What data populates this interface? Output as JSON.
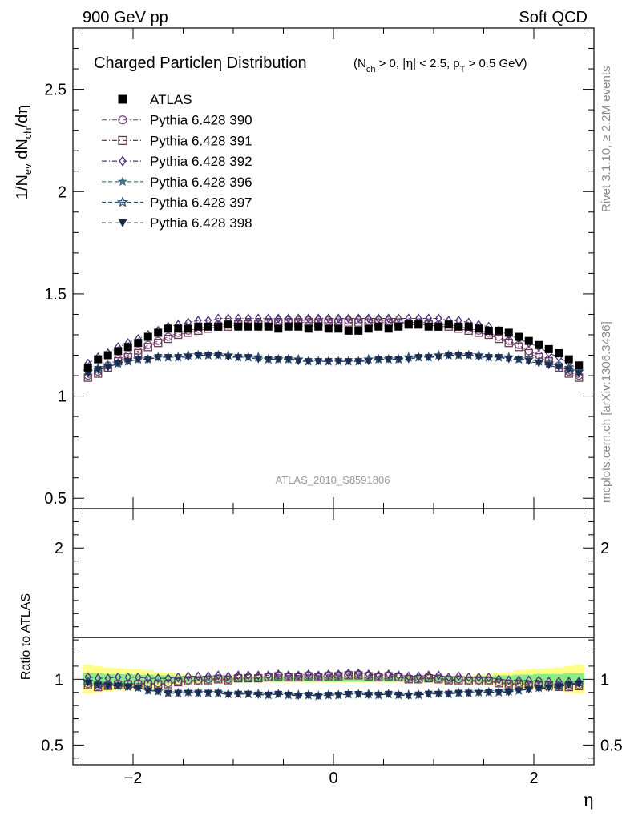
{
  "header": {
    "left": "900 GeV pp",
    "right": "Soft QCD"
  },
  "side_text": {
    "top": "Rivet 3.1.10, ≥ 2.2M events",
    "bottom": "mcplots.cern.ch [arXiv:1306.3436]"
  },
  "watermark": "ATLAS_2010_S8591806",
  "chart_data": {
    "type": "scatter",
    "title": "Charged Particleη Distribution",
    "subtitle": "(N_ch > 0, |η| < 2.5, p_T > 0.5 GeV)",
    "xlabel": "η",
    "ylabel": "1/N_ev dN_ch/dη",
    "ratio_ylabel": "Ratio to ATLAS",
    "xlim": [
      -2.6,
      2.6
    ],
    "ylim": [
      0.45,
      2.8
    ],
    "ratio_ylim": [
      0.35,
      2.3
    ],
    "xticks": [
      "−2",
      "0",
      "2"
    ],
    "yticks": [
      "0.5",
      "1",
      "1.5",
      "2",
      "2.5"
    ],
    "ratio_yticks": [
      "0.5",
      "1",
      "2"
    ],
    "legend_position": "top-left",
    "x": [
      -2.45,
      -2.35,
      -2.25,
      -2.15,
      -2.05,
      -1.95,
      -1.85,
      -1.75,
      -1.65,
      -1.55,
      -1.45,
      -1.35,
      -1.25,
      -1.15,
      -1.05,
      -0.95,
      -0.85,
      -0.75,
      -0.65,
      -0.55,
      -0.45,
      -0.35,
      -0.25,
      -0.15,
      -0.05,
      0.05,
      0.15,
      0.25,
      0.35,
      0.45,
      0.55,
      0.65,
      0.75,
      0.85,
      0.95,
      1.05,
      1.15,
      1.25,
      1.35,
      1.45,
      1.55,
      1.65,
      1.75,
      1.85,
      1.95,
      2.05,
      2.15,
      2.25,
      2.35,
      2.45
    ],
    "reference": {
      "name": "ATLAS",
      "color": "#000000",
      "values": [
        1.14,
        1.18,
        1.2,
        1.22,
        1.24,
        1.26,
        1.29,
        1.31,
        1.33,
        1.33,
        1.33,
        1.34,
        1.34,
        1.34,
        1.35,
        1.34,
        1.34,
        1.34,
        1.34,
        1.33,
        1.34,
        1.34,
        1.33,
        1.34,
        1.33,
        1.33,
        1.32,
        1.32,
        1.33,
        1.34,
        1.33,
        1.34,
        1.35,
        1.35,
        1.34,
        1.34,
        1.35,
        1.34,
        1.34,
        1.33,
        1.32,
        1.32,
        1.31,
        1.29,
        1.27,
        1.25,
        1.23,
        1.21,
        1.18,
        1.15
      ]
    },
    "series": [
      {
        "name": "Pythia 6.428 390",
        "color": "#7b4a86",
        "marker": "circle-open",
        "dash": "6,3,1,3",
        "values": [
          1.1,
          1.12,
          1.15,
          1.18,
          1.2,
          1.22,
          1.25,
          1.27,
          1.29,
          1.31,
          1.32,
          1.33,
          1.34,
          1.35,
          1.35,
          1.36,
          1.36,
          1.36,
          1.36,
          1.37,
          1.37,
          1.37,
          1.37,
          1.37,
          1.37,
          1.37,
          1.37,
          1.37,
          1.37,
          1.37,
          1.37,
          1.36,
          1.36,
          1.36,
          1.36,
          1.35,
          1.35,
          1.34,
          1.33,
          1.32,
          1.31,
          1.29,
          1.27,
          1.25,
          1.22,
          1.2,
          1.18,
          1.15,
          1.12,
          1.1
        ]
      },
      {
        "name": "Pythia 6.428 391",
        "color": "#6b3a52",
        "marker": "square-open",
        "dash": "6,3,1,3",
        "values": [
          1.09,
          1.11,
          1.14,
          1.17,
          1.19,
          1.21,
          1.24,
          1.26,
          1.28,
          1.3,
          1.31,
          1.32,
          1.33,
          1.34,
          1.34,
          1.35,
          1.35,
          1.35,
          1.36,
          1.36,
          1.36,
          1.36,
          1.36,
          1.36,
          1.36,
          1.36,
          1.36,
          1.36,
          1.36,
          1.36,
          1.36,
          1.36,
          1.35,
          1.35,
          1.35,
          1.34,
          1.34,
          1.33,
          1.32,
          1.31,
          1.3,
          1.28,
          1.26,
          1.24,
          1.21,
          1.19,
          1.17,
          1.14,
          1.11,
          1.09
        ]
      },
      {
        "name": "Pythia 6.428 392",
        "color": "#4b2f7a",
        "marker": "diamond-open",
        "dash": "6,3,1,3",
        "values": [
          1.16,
          1.19,
          1.21,
          1.24,
          1.26,
          1.28,
          1.3,
          1.32,
          1.34,
          1.35,
          1.36,
          1.37,
          1.37,
          1.38,
          1.38,
          1.38,
          1.38,
          1.38,
          1.38,
          1.38,
          1.38,
          1.38,
          1.38,
          1.38,
          1.38,
          1.38,
          1.38,
          1.38,
          1.38,
          1.38,
          1.38,
          1.38,
          1.38,
          1.38,
          1.38,
          1.38,
          1.37,
          1.37,
          1.36,
          1.35,
          1.34,
          1.32,
          1.3,
          1.28,
          1.26,
          1.24,
          1.21,
          1.19,
          1.16,
          1.13
        ]
      },
      {
        "name": "Pythia 6.428 396",
        "color": "#3c6e80",
        "marker": "star-filled",
        "dash": "5,3",
        "values": [
          1.12,
          1.14,
          1.15,
          1.16,
          1.17,
          1.18,
          1.18,
          1.19,
          1.19,
          1.19,
          1.2,
          1.2,
          1.2,
          1.2,
          1.2,
          1.19,
          1.19,
          1.19,
          1.18,
          1.18,
          1.18,
          1.18,
          1.17,
          1.17,
          1.17,
          1.17,
          1.17,
          1.17,
          1.18,
          1.18,
          1.18,
          1.18,
          1.19,
          1.19,
          1.19,
          1.2,
          1.2,
          1.2,
          1.2,
          1.2,
          1.19,
          1.19,
          1.19,
          1.18,
          1.18,
          1.17,
          1.16,
          1.15,
          1.14,
          1.12
        ]
      },
      {
        "name": "Pythia 6.428 397",
        "color": "#2c5070",
        "marker": "star-open",
        "dash": "5,3",
        "values": [
          1.12,
          1.13,
          1.15,
          1.16,
          1.17,
          1.18,
          1.18,
          1.19,
          1.19,
          1.19,
          1.2,
          1.2,
          1.2,
          1.2,
          1.2,
          1.19,
          1.19,
          1.19,
          1.18,
          1.18,
          1.18,
          1.18,
          1.17,
          1.17,
          1.17,
          1.17,
          1.17,
          1.17,
          1.18,
          1.18,
          1.18,
          1.18,
          1.19,
          1.19,
          1.19,
          1.2,
          1.2,
          1.2,
          1.2,
          1.2,
          1.19,
          1.19,
          1.19,
          1.18,
          1.18,
          1.17,
          1.16,
          1.15,
          1.13,
          1.12
        ]
      },
      {
        "name": "Pythia 6.428 398",
        "color": "#1c2c50",
        "marker": "triangle-down",
        "dash": "5,3",
        "values": [
          1.11,
          1.13,
          1.14,
          1.16,
          1.17,
          1.18,
          1.18,
          1.19,
          1.19,
          1.19,
          1.19,
          1.2,
          1.2,
          1.2,
          1.19,
          1.19,
          1.19,
          1.18,
          1.18,
          1.18,
          1.18,
          1.17,
          1.17,
          1.17,
          1.17,
          1.17,
          1.17,
          1.17,
          1.17,
          1.18,
          1.18,
          1.18,
          1.18,
          1.19,
          1.19,
          1.19,
          1.2,
          1.2,
          1.2,
          1.19,
          1.19,
          1.19,
          1.18,
          1.18,
          1.17,
          1.16,
          1.15,
          1.14,
          1.13,
          1.11
        ]
      }
    ],
    "uncertainty_band": {
      "outer_color": "#ffff88",
      "inner_color": "#88ee88",
      "outer": [
        0.11,
        0.1,
        0.09,
        0.085,
        0.08,
        0.075,
        0.07,
        0.055,
        0.05,
        0.04,
        0.035,
        0.03,
        0.03,
        0.03,
        0.03,
        0.025,
        0.025,
        0.025,
        0.025,
        0.025,
        0.025,
        0.025,
        0.025,
        0.025,
        0.025,
        0.025,
        0.025,
        0.025,
        0.025,
        0.025,
        0.025,
        0.025,
        0.025,
        0.025,
        0.025,
        0.03,
        0.03,
        0.03,
        0.03,
        0.035,
        0.04,
        0.05,
        0.055,
        0.07,
        0.075,
        0.08,
        0.085,
        0.09,
        0.1,
        0.11
      ],
      "inner": [
        0.045,
        0.045,
        0.04,
        0.04,
        0.04,
        0.035,
        0.035,
        0.03,
        0.03,
        0.025,
        0.025,
        0.02,
        0.02,
        0.02,
        0.02,
        0.018,
        0.018,
        0.018,
        0.018,
        0.018,
        0.018,
        0.018,
        0.018,
        0.018,
        0.018,
        0.018,
        0.018,
        0.018,
        0.018,
        0.018,
        0.018,
        0.018,
        0.018,
        0.018,
        0.018,
        0.02,
        0.02,
        0.02,
        0.02,
        0.025,
        0.025,
        0.03,
        0.03,
        0.035,
        0.035,
        0.04,
        0.04,
        0.04,
        0.045,
        0.045
      ]
    }
  }
}
